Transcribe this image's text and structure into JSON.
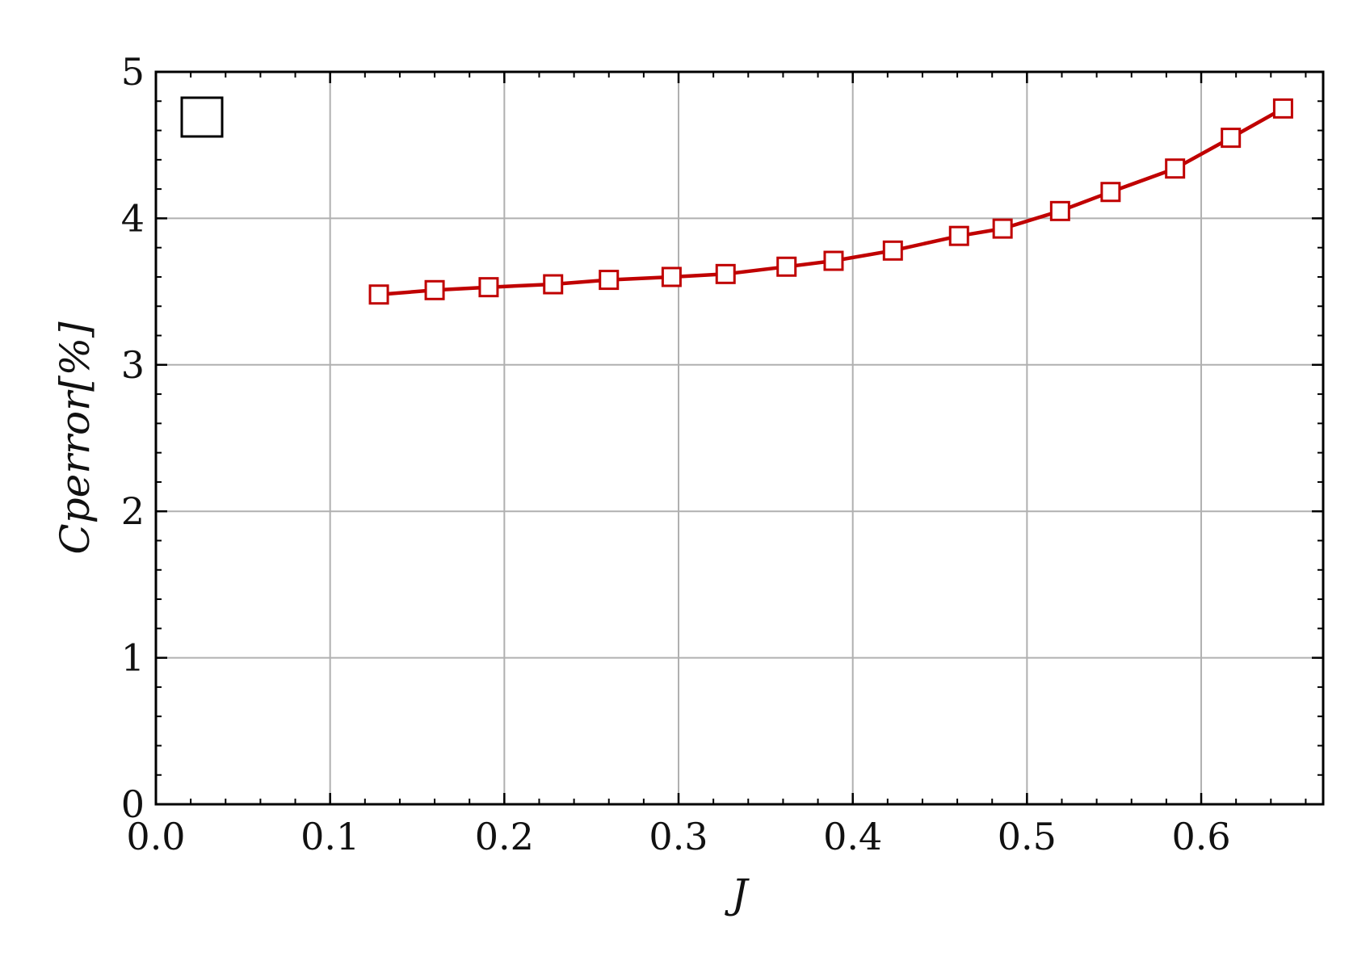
{
  "chart_data": {
    "type": "line",
    "title": "",
    "xlabel": "J",
    "ylabel": "Cperror[%]",
    "xlim": [
      0.0,
      0.67
    ],
    "ylim": [
      0,
      5
    ],
    "x_ticks": [
      "0.0",
      "0.1",
      "0.2",
      "0.3",
      "0.4",
      "0.5",
      "0.6"
    ],
    "y_ticks": [
      "0",
      "1",
      "2",
      "3",
      "4",
      "5"
    ],
    "grid": true,
    "legend_placement": "top-left",
    "series": [
      {
        "marker": "open-square",
        "color": "#c00000",
        "x": [
          0.128,
          0.16,
          0.191,
          0.228,
          0.26,
          0.296,
          0.327,
          0.362,
          0.389,
          0.423,
          0.461,
          0.486,
          0.519,
          0.548,
          0.585,
          0.617,
          0.647
        ],
        "y": [
          3.48,
          3.51,
          3.53,
          3.55,
          3.58,
          3.6,
          3.62,
          3.67,
          3.71,
          3.78,
          3.88,
          3.93,
          4.05,
          4.18,
          4.34,
          4.55,
          4.75
        ]
      }
    ]
  }
}
